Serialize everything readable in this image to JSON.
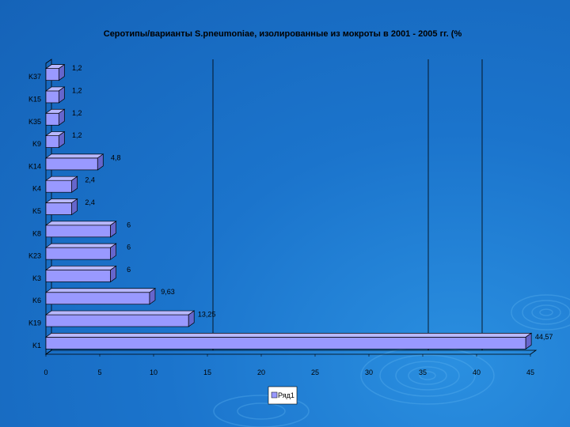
{
  "colors": {
    "background": "#1b74cc",
    "bar_front": "#9999ff",
    "bar_top": "#b8b8ff",
    "bar_side": "#6666cc",
    "axis": "#000000",
    "gridline": "#000000"
  },
  "chart_data": {
    "type": "bar",
    "orientation": "horizontal",
    "title": "Серотипы/варианты S.pneumoniae, изолированные из мокроты в 2001 - 2005 гг. (%",
    "categories": [
      "K37",
      "K15",
      "K35",
      "K9",
      "K14",
      "K4",
      "K5",
      "K8",
      "K23",
      "K3",
      "K6",
      "K19",
      "K1"
    ],
    "series": [
      {
        "name": "Ряд1",
        "values": [
          1.2,
          1.2,
          1.2,
          1.2,
          4.8,
          2.4,
          2.4,
          6,
          6,
          6,
          9.63,
          13.25,
          44.57
        ]
      }
    ],
    "data_labels": [
      "1,2",
      "1,2",
      "1,2",
      "1,2",
      "4,8",
      "2,4",
      "2,4",
      "6",
      "6",
      "6",
      "9,63",
      "13,25",
      "44,57"
    ],
    "xlim": [
      0,
      45
    ],
    "xticks": [
      "0",
      "5",
      "10",
      "15",
      "20",
      "25",
      "30",
      "35",
      "40",
      "45"
    ],
    "gridlines_x": [
      15,
      35,
      40
    ],
    "legend_position": "bottom",
    "three_d": true
  }
}
